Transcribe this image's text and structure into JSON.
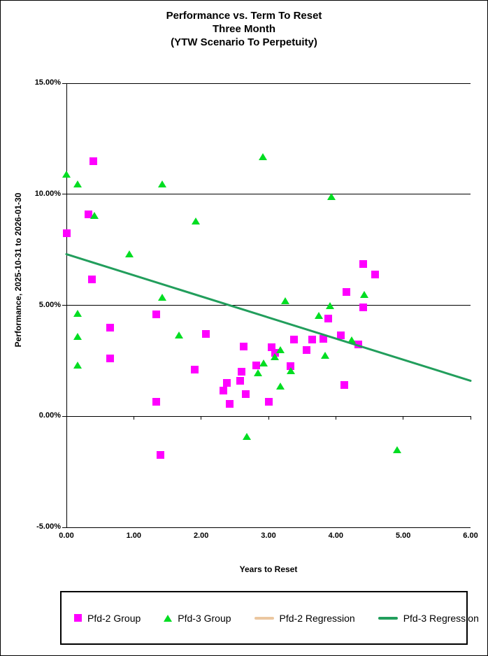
{
  "chart_data": {
    "type": "scatter",
    "title_lines": [
      "Performance vs. Term To Reset",
      "Three Month",
      "(YTW Scenario To Perpetuity)"
    ],
    "ylabel": "Performance, 2025-10-31  to  2026-01-30",
    "xlabel": "Years to Reset",
    "xlim": [
      0,
      6
    ],
    "ylim": [
      -5,
      15
    ],
    "x_tick_values": [
      0,
      1,
      2,
      3,
      4,
      5,
      6
    ],
    "x_ticks": [
      "0.00",
      "1.00",
      "2.00",
      "3.00",
      "4.00",
      "5.00",
      "6.00"
    ],
    "y_tick_values": [
      15,
      10,
      5,
      0,
      -5
    ],
    "y_ticks": [
      "15.00%",
      "10.00%",
      "5.00%",
      "0.00%",
      "-5.00%"
    ],
    "grid": "horizontal-major",
    "legend_position": "bottom",
    "axis_color": "#000000",
    "series": [
      {
        "name": "Pfd-2 Group",
        "marker": "square",
        "color": "#FF00FF",
        "points": [
          [
            0.0,
            8.25
          ],
          [
            0.33,
            9.1
          ],
          [
            0.4,
            11.5
          ],
          [
            0.38,
            6.15
          ],
          [
            0.65,
            4.0
          ],
          [
            0.65,
            2.6
          ],
          [
            1.33,
            4.6
          ],
          [
            1.33,
            0.65
          ],
          [
            1.4,
            -1.75
          ],
          [
            1.9,
            2.1
          ],
          [
            2.07,
            3.7
          ],
          [
            2.33,
            1.15
          ],
          [
            2.38,
            1.5
          ],
          [
            2.42,
            0.55
          ],
          [
            2.58,
            1.6
          ],
          [
            2.6,
            2.0
          ],
          [
            2.63,
            3.15
          ],
          [
            2.66,
            1.0
          ],
          [
            2.82,
            2.3
          ],
          [
            3.0,
            0.65
          ],
          [
            3.05,
            3.1
          ],
          [
            3.1,
            2.85
          ],
          [
            3.33,
            2.25
          ],
          [
            3.38,
            3.45
          ],
          [
            3.57,
            3.0
          ],
          [
            3.65,
            3.45
          ],
          [
            3.82,
            3.5
          ],
          [
            3.89,
            4.4
          ],
          [
            4.07,
            3.65
          ],
          [
            4.13,
            1.4
          ],
          [
            4.16,
            5.6
          ],
          [
            4.33,
            3.25
          ],
          [
            4.41,
            6.85
          ],
          [
            4.41,
            4.9
          ],
          [
            4.58,
            6.4
          ]
        ]
      },
      {
        "name": "Pfd-3 Group",
        "marker": "triangle",
        "color": "#00DD22",
        "points": [
          [
            0.0,
            10.9
          ],
          [
            0.17,
            10.45
          ],
          [
            0.17,
            4.65
          ],
          [
            0.17,
            3.6
          ],
          [
            0.17,
            2.3
          ],
          [
            0.42,
            9.05
          ],
          [
            0.93,
            7.3
          ],
          [
            1.42,
            10.45
          ],
          [
            1.42,
            5.35
          ],
          [
            1.67,
            3.65
          ],
          [
            1.92,
            8.8
          ],
          [
            2.68,
            -0.9
          ],
          [
            2.84,
            1.95
          ],
          [
            2.92,
            11.7
          ],
          [
            2.93,
            2.4
          ],
          [
            3.09,
            2.7
          ],
          [
            3.18,
            3.0
          ],
          [
            3.18,
            1.35
          ],
          [
            3.25,
            5.2
          ],
          [
            3.33,
            2.05
          ],
          [
            3.75,
            4.55
          ],
          [
            3.84,
            2.75
          ],
          [
            3.91,
            5.0
          ],
          [
            3.93,
            9.9
          ],
          [
            4.24,
            3.45
          ],
          [
            4.42,
            5.5
          ],
          [
            4.91,
            -1.5
          ]
        ]
      },
      {
        "name": "Pfd-2 Regression",
        "marker": "line",
        "color": "#EBC7A0",
        "points": []
      },
      {
        "name": "Pfd-3 Regression",
        "marker": "line",
        "color": "#229E5C",
        "points": [
          [
            0,
            7.3
          ],
          [
            6,
            1.6
          ]
        ]
      }
    ]
  }
}
